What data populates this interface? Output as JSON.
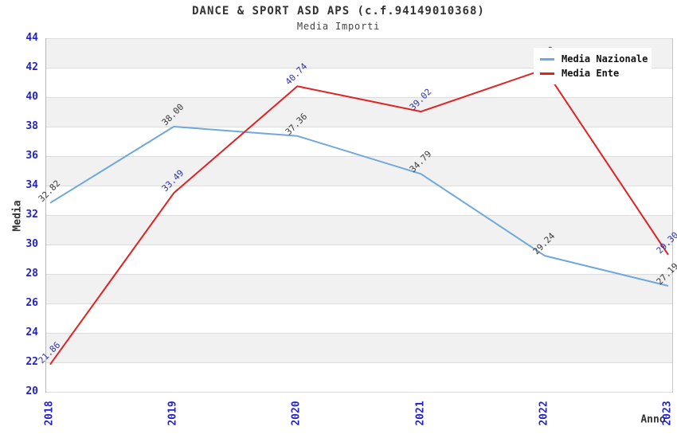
{
  "chart_data": {
    "type": "line",
    "title": "DANCE & SPORT ASD APS (c.f.94149010368)",
    "subtitle": "Media Importi",
    "xlabel": "Anno",
    "ylabel": "Media",
    "x": [
      "2018",
      "2019",
      "2020",
      "2021",
      "2022",
      "2023"
    ],
    "ylim": [
      20,
      44
    ],
    "ytick_step": 2,
    "grid": "horizontal-bands",
    "legend_position": "top-right",
    "series": [
      {
        "name": "Media Nazionale",
        "color": "#6fa8dc",
        "label_color": "#3a3a3a",
        "values": [
          32.82,
          38.0,
          37.36,
          34.79,
          29.24,
          27.19
        ]
      },
      {
        "name": "Media Ente",
        "color": "#e02222",
        "label_color": "#3232a8",
        "values": [
          21.86,
          33.49,
          40.74,
          39.02,
          41.9,
          29.3
        ],
        "label_hidden_at": "2022"
      }
    ],
    "colors": {
      "tick_label": "#2222cc",
      "title": "#333333",
      "gridline": "#dcdcdc",
      "band": "#f1f1f1",
      "plot_border": "#b5b5b5",
      "legend_bg": "#ffffff"
    }
  }
}
